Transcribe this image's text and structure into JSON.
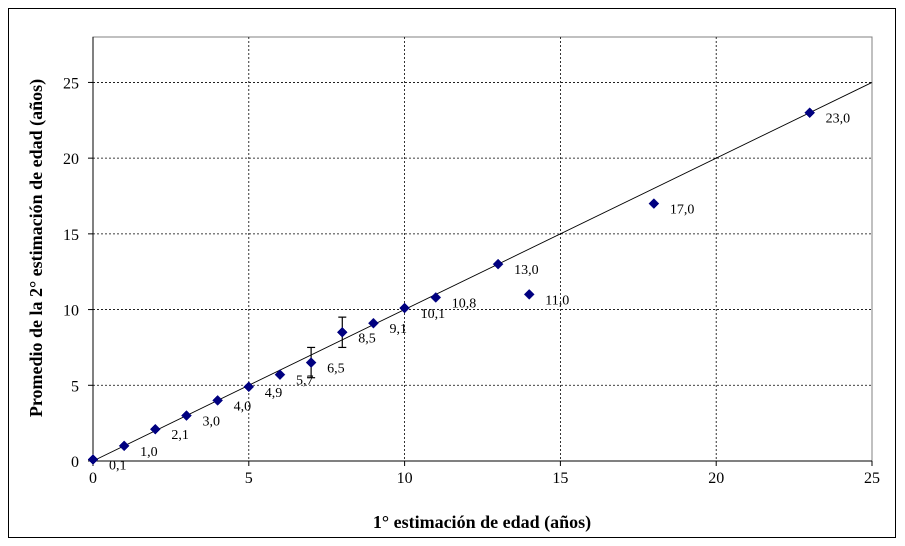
{
  "chart_data": {
    "type": "scatter",
    "title": "",
    "xlabel": "1° estimación de edad (años)",
    "ylabel": "Promedio de la 2° estimación de edad (años)",
    "xlim": [
      0,
      25
    ],
    "ylim": [
      0,
      28
    ],
    "x_ticks": [
      0,
      5,
      10,
      15,
      20,
      25
    ],
    "x_tick_labels": [
      "0",
      "5",
      "10",
      "15",
      "20",
      "25"
    ],
    "y_ticks": [
      0,
      5,
      10,
      15,
      20,
      25
    ],
    "y_tick_labels": [
      "0",
      "5",
      "10",
      "15",
      "20",
      "25"
    ],
    "grid": true,
    "grid_style": "dashed",
    "marker_color": "#000080",
    "reference_line": {
      "from": [
        0,
        0
      ],
      "to": [
        25,
        25
      ],
      "color": "#000000"
    },
    "points": [
      {
        "x": 0,
        "y": 0.1,
        "label": "0,1"
      },
      {
        "x": 1,
        "y": 1.0,
        "label": "1,0"
      },
      {
        "x": 2,
        "y": 2.1,
        "label": "2,1"
      },
      {
        "x": 3,
        "y": 3.0,
        "label": "3,0"
      },
      {
        "x": 4,
        "y": 4.0,
        "label": "4,0"
      },
      {
        "x": 5,
        "y": 4.9,
        "label": "4,9"
      },
      {
        "x": 6,
        "y": 5.7,
        "label": "5,7"
      },
      {
        "x": 7,
        "y": 6.5,
        "label": "6,5",
        "err": 1.0
      },
      {
        "x": 8,
        "y": 8.5,
        "label": "8,5",
        "err": 1.0
      },
      {
        "x": 9,
        "y": 9.1,
        "label": "9,1"
      },
      {
        "x": 10,
        "y": 10.1,
        "label": "10,1"
      },
      {
        "x": 11,
        "y": 10.8,
        "label": "10,8"
      },
      {
        "x": 13,
        "y": 13.0,
        "label": "13,0"
      },
      {
        "x": 14,
        "y": 11.0,
        "label": "11,0"
      },
      {
        "x": 18,
        "y": 17.0,
        "label": "17,0"
      },
      {
        "x": 23,
        "y": 23.0,
        "label": "23,0"
      }
    ]
  }
}
